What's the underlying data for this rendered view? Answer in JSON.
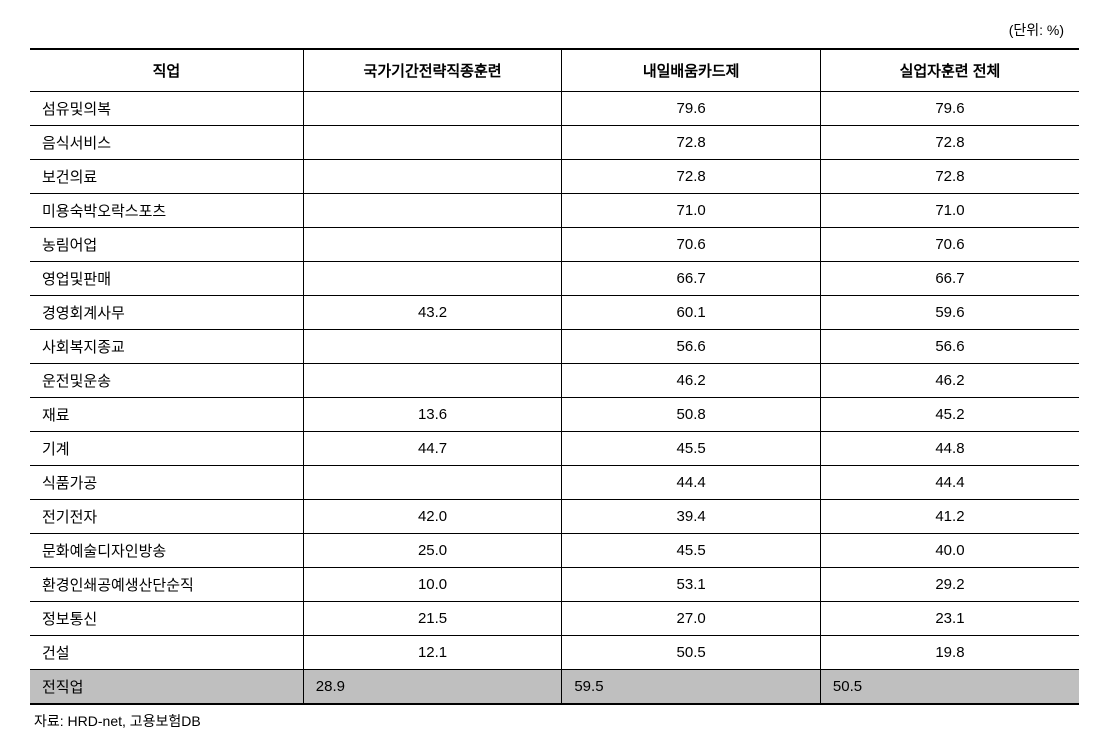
{
  "unit_label": "(단위: %)",
  "headers": {
    "col0": "직업",
    "col1": "국가기간전략직종훈련",
    "col2": "내일배움카드제",
    "col3": "실업자훈련 전체"
  },
  "rows": [
    {
      "job": "섬유및의복",
      "c1": "",
      "c2": "79.6",
      "c3": "79.6"
    },
    {
      "job": "음식서비스",
      "c1": "",
      "c2": "72.8",
      "c3": "72.8"
    },
    {
      "job": "보건의료",
      "c1": "",
      "c2": "72.8",
      "c3": "72.8"
    },
    {
      "job": "미용숙박오락스포츠",
      "c1": "",
      "c2": "71.0",
      "c3": "71.0"
    },
    {
      "job": "농림어업",
      "c1": "",
      "c2": "70.6",
      "c3": "70.6"
    },
    {
      "job": "영업및판매",
      "c1": "",
      "c2": "66.7",
      "c3": "66.7"
    },
    {
      "job": "경영회계사무",
      "c1": "43.2",
      "c2": "60.1",
      "c3": "59.6"
    },
    {
      "job": "사회복지종교",
      "c1": "",
      "c2": "56.6",
      "c3": "56.6"
    },
    {
      "job": "운전및운송",
      "c1": "",
      "c2": "46.2",
      "c3": "46.2"
    },
    {
      "job": "재료",
      "c1": "13.6",
      "c2": "50.8",
      "c3": "45.2"
    },
    {
      "job": "기계",
      "c1": "44.7",
      "c2": "45.5",
      "c3": "44.8"
    },
    {
      "job": "식품가공",
      "c1": "",
      "c2": "44.4",
      "c3": "44.4"
    },
    {
      "job": "전기전자",
      "c1": "42.0",
      "c2": "39.4",
      "c3": "41.2"
    },
    {
      "job": "문화예술디자인방송",
      "c1": "25.0",
      "c2": "45.5",
      "c3": "40.0"
    },
    {
      "job": "환경인쇄공예생산단순직",
      "c1": "10.0",
      "c2": "53.1",
      "c3": "29.2"
    },
    {
      "job": "정보통신",
      "c1": "21.5",
      "c2": "27.0",
      "c3": "23.1"
    },
    {
      "job": "건설",
      "c1": "12.1",
      "c2": "50.5",
      "c3": "19.8"
    }
  ],
  "total_row": {
    "job": "전직업",
    "c1": "28.9",
    "c2": "59.5",
    "c3": "50.5"
  },
  "source": "자료: HRD-net, 고용보험DB",
  "styling": {
    "background_color": "#ffffff",
    "text_color": "#000000",
    "border_color": "#000000",
    "total_row_bg": "#bfbfbf",
    "font_family": "Malgun Gothic",
    "font_size_body": 15,
    "font_size_label": 14,
    "header_border_top_width": 2,
    "header_border_bottom_width": 1,
    "total_border_bottom_width": 2,
    "column_widths_pct": [
      26,
      24.6,
      24.6,
      24.6
    ]
  }
}
